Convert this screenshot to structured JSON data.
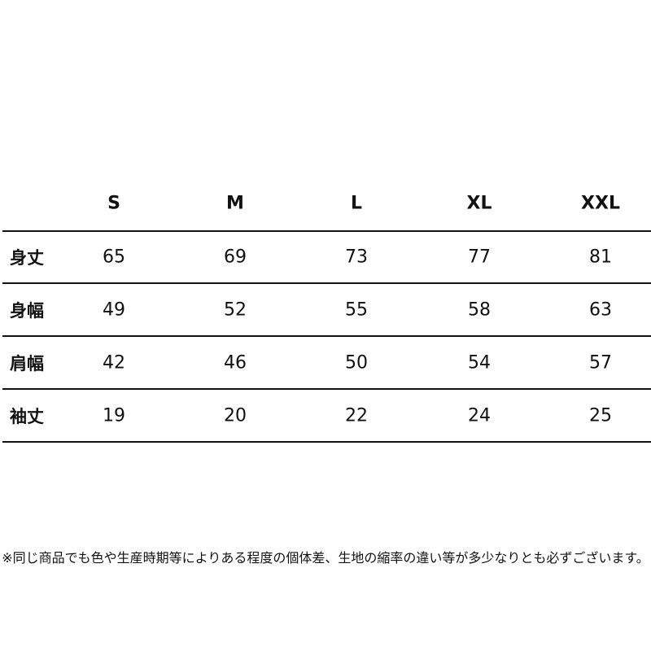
{
  "table": {
    "columns": [
      "S",
      "M",
      "L",
      "XL",
      "XXL"
    ],
    "rows": [
      {
        "label": "身丈",
        "values": [
          65,
          69,
          73,
          77,
          81
        ]
      },
      {
        "label": "身幅",
        "values": [
          49,
          52,
          55,
          58,
          63
        ]
      },
      {
        "label": "肩幅",
        "values": [
          42,
          46,
          50,
          54,
          57
        ]
      },
      {
        "label": "袖丈",
        "values": [
          19,
          20,
          22,
          24,
          25
        ]
      }
    ]
  },
  "note": "※同じ商品でも色や生産時期等によりある程度の個体差、生地の縮率の違い等が多少なりとも必ずございます。"
}
